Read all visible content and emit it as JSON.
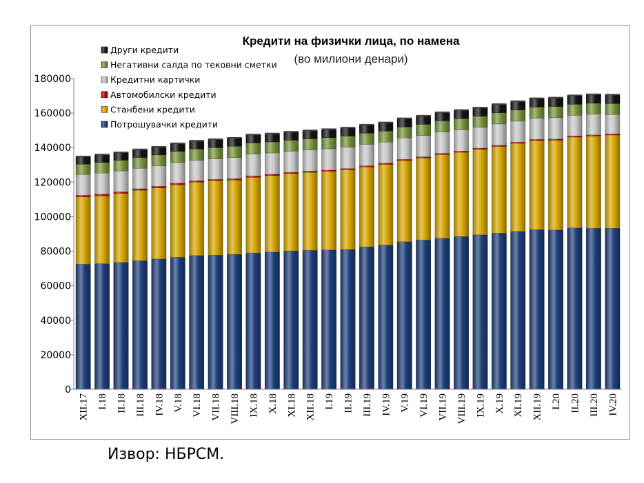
{
  "source_note": "Извор: НБРСМ.",
  "chart_data": {
    "type": "bar",
    "stacked": true,
    "title": "Кредити на физички лица, по намена",
    "subtitle": "(во милиони денари)",
    "ylim": [
      0,
      180000
    ],
    "yticks": [
      "0",
      "20000",
      "40000",
      "60000",
      "80000",
      "100000",
      "120000",
      "140000",
      "160000",
      "180000"
    ],
    "legend_position": "top-left",
    "grid": false,
    "categories": [
      "XII.17",
      "I.18",
      "II.18",
      "III.18",
      "IV.18",
      "V.18",
      "VI.18",
      "VII.18",
      "VIII.18",
      "IX.18",
      "X.18",
      "XI.18",
      "XII.18",
      "I.19",
      "II.19",
      "III.19",
      "IV.19",
      "V.19",
      "VI.19",
      "VII.19",
      "VIII.19",
      "IX.19",
      "X.19",
      "XI.19",
      "XII.19",
      "I.20",
      "II.20",
      "III.20",
      "IV.20"
    ],
    "series": [
      {
        "name": "Потрошувачки кредити",
        "color": "#1f3f7a",
        "values": [
          72500,
          72800,
          73500,
          74500,
          75500,
          76500,
          77500,
          77800,
          78200,
          79000,
          79500,
          80200,
          80500,
          80700,
          81000,
          82500,
          83500,
          85500,
          86500,
          87500,
          88500,
          89500,
          90500,
          91500,
          92500,
          92300,
          93500,
          93300,
          93300
        ]
      },
      {
        "name": "Станбени кредити",
        "color": "#d6a600",
        "values": [
          39000,
          39300,
          40000,
          40800,
          41200,
          42000,
          42500,
          43000,
          43000,
          43800,
          44300,
          44800,
          45200,
          45600,
          46200,
          46300,
          46800,
          47000,
          47500,
          48500,
          48800,
          49500,
          50200,
          51000,
          51600,
          52000,
          52600,
          53400,
          54000
        ]
      },
      {
        "name": "Автомобилски кредити",
        "color": "#c00000",
        "values": [
          900,
          900,
          900,
          900,
          900,
          900,
          800,
          800,
          800,
          800,
          800,
          700,
          700,
          700,
          700,
          700,
          700,
          700,
          700,
          700,
          700,
          700,
          700,
          700,
          700,
          700,
          700,
          700,
          700
        ]
      },
      {
        "name": "Кредитни картички",
        "color": "#c8c8c8",
        "values": [
          12000,
          12200,
          12000,
          11800,
          11800,
          11900,
          11800,
          11800,
          12200,
          12600,
          12300,
          12200,
          12200,
          12300,
          12300,
          12400,
          12200,
          12400,
          12300,
          12300,
          12300,
          12100,
          12300,
          12100,
          12200,
          12300,
          11900,
          11900,
          11200
        ]
      },
      {
        "name": "Негативни салда по тековни сметки",
        "color": "#77933c",
        "values": [
          6000,
          6200,
          6300,
          6300,
          6400,
          6500,
          6600,
          6600,
          6600,
          6500,
          6400,
          6400,
          6500,
          6500,
          6500,
          6500,
          6400,
          6400,
          6500,
          6500,
          6500,
          6400,
          6500,
          6500,
          6500,
          6500,
          6400,
          6400,
          6300
        ]
      },
      {
        "name": "Други кредити",
        "color": "#151515",
        "values": [
          4500,
          4600,
          4600,
          4700,
          4700,
          4700,
          4800,
          4900,
          4900,
          4900,
          4900,
          4900,
          4900,
          4900,
          4900,
          4900,
          5000,
          5000,
          5000,
          5000,
          5000,
          5000,
          5000,
          5100,
          5100,
          5200,
          5200,
          5200,
          5200
        ]
      }
    ]
  }
}
